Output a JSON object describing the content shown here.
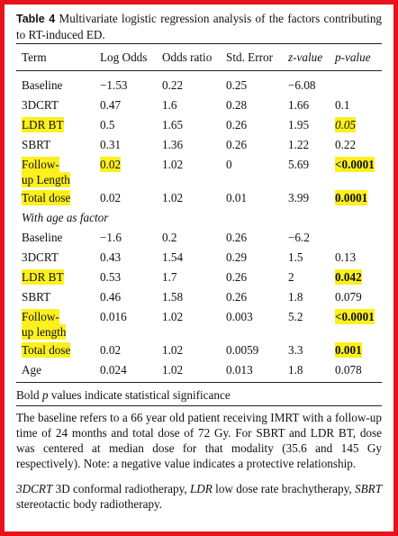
{
  "caption": {
    "label": "Table 4",
    "text": "Multivariate logistic regression analysis of the factors contributing to RT-induced ED."
  },
  "headers": [
    "Term",
    "Log Odds",
    "Odds ratio",
    "Std. Error",
    "z-value",
    "p-value"
  ],
  "section1_rows": [
    {
      "term": "Baseline",
      "log_odds": "−1.53",
      "odds_ratio": "0.22",
      "std_error": "0.25",
      "z_value": "−6.08",
      "p_value": ""
    },
    {
      "term": "3DCRT",
      "log_odds": "0.47",
      "odds_ratio": "1.6",
      "std_error": "0.28",
      "z_value": "1.66",
      "p_value": "0.1"
    },
    {
      "term": "LDR BT",
      "log_odds": "0.5",
      "odds_ratio": "1.65",
      "std_error": "0.26",
      "z_value": "1.95",
      "p_value": "0.05"
    },
    {
      "term": "SBRT",
      "log_odds": "0.31",
      "odds_ratio": "1.36",
      "std_error": "0.26",
      "z_value": "1.22",
      "p_value": "0.22"
    },
    {
      "term_line1": "Follow-",
      "term_line2": "up Length",
      "log_odds": "0.02",
      "odds_ratio": "1.02",
      "std_error": "0",
      "z_value": "5.69",
      "p_value": "<0.0001"
    },
    {
      "term": "Total dose",
      "log_odds": "0.02",
      "odds_ratio": "1.02",
      "std_error": "0.01",
      "z_value": "3.99",
      "p_value": "0.0001"
    }
  ],
  "section2_label": "With age as factor",
  "section2_rows": [
    {
      "term": "Baseline",
      "log_odds": "−1.6",
      "odds_ratio": "0.2",
      "std_error": "0.26",
      "z_value": "−6.2",
      "p_value": ""
    },
    {
      "term": "3DCRT",
      "log_odds": "0.43",
      "odds_ratio": "1.54",
      "std_error": "0.29",
      "z_value": "1.5",
      "p_value": "0.13"
    },
    {
      "term": "LDR BT",
      "log_odds": "0.53",
      "odds_ratio": "1.7",
      "std_error": "0.26",
      "z_value": "2",
      "p_value": "0.042"
    },
    {
      "term": "SBRT",
      "log_odds": "0.46",
      "odds_ratio": "1.58",
      "std_error": "0.26",
      "z_value": "1.8",
      "p_value": "0.079"
    },
    {
      "term_line1": "Follow-",
      "term_line2": "up length",
      "log_odds": "0.016",
      "odds_ratio": "1.02",
      "std_error": "0.003",
      "z_value": "5.2",
      "p_value": "<0.0001"
    },
    {
      "term": "Total dose",
      "log_odds": "0.02",
      "odds_ratio": "1.02",
      "std_error": "0.0059",
      "z_value": "3.3",
      "p_value": "0.001"
    },
    {
      "term": "Age",
      "log_odds": "0.024",
      "odds_ratio": "1.02",
      "std_error": "0.013",
      "z_value": "1.8",
      "p_value": "0.078"
    }
  ],
  "footnote1": {
    "pre": "Bold ",
    "p": "p",
    "post": " values indicate statistical significance"
  },
  "footnote2": "The baseline refers to a 66 year old patient receiving IMRT with a follow-up time of 24 months and total dose of 72 Gy. For SBRT and LDR BT, dose was centered at median dose for that modality (35.6 and 145 Gy respectively). Note: a negative value indicates a protective relationship.",
  "footnote3": {
    "a1": "3DCRT",
    "t1": " 3D conformal radiotherapy, ",
    "a2": "LDR",
    "t2": " low dose rate brachytherapy,",
    "a3": "SBRT",
    "t3": " stereotactic body radiotherapy."
  },
  "highlight_color": "#fcf01e",
  "border_color": "#e8121a"
}
